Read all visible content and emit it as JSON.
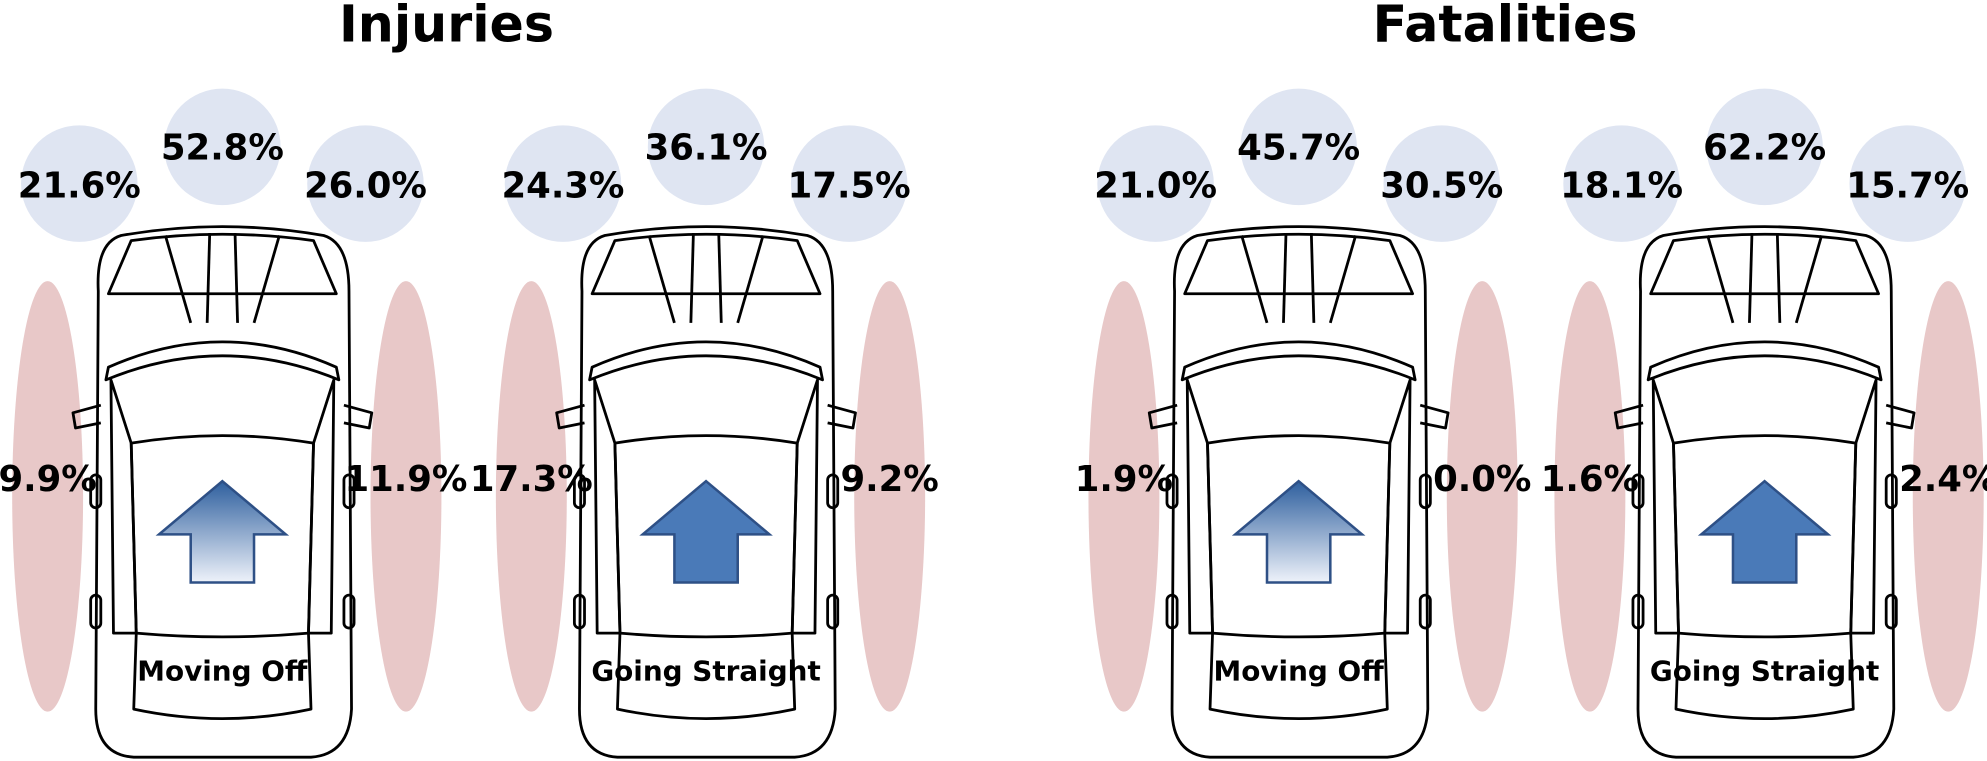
{
  "panels": [
    {
      "title": "Injuries",
      "cars": [
        {
          "label": "Moving Off",
          "front_left": "21.6%",
          "front": "52.8%",
          "front_right": "26.0%",
          "left": "9.9%",
          "right": "11.9%"
        },
        {
          "label": "Going Straight",
          "front_left": "24.3%",
          "front": "36.1%",
          "front_right": "17.5%",
          "left": "17.3%",
          "right": "9.2%"
        }
      ]
    },
    {
      "title": "Fatalities",
      "cars": [
        {
          "label": "Moving Off",
          "front_left": "21.0%",
          "front": "45.7%",
          "front_right": "30.5%",
          "left": "1.9%",
          "right": "0.0%"
        },
        {
          "label": "Going Straight",
          "front_left": "18.1%",
          "front": "62.2%",
          "front_right": "15.7%",
          "left": "1.6%",
          "right": "2.4%"
        }
      ]
    }
  ]
}
